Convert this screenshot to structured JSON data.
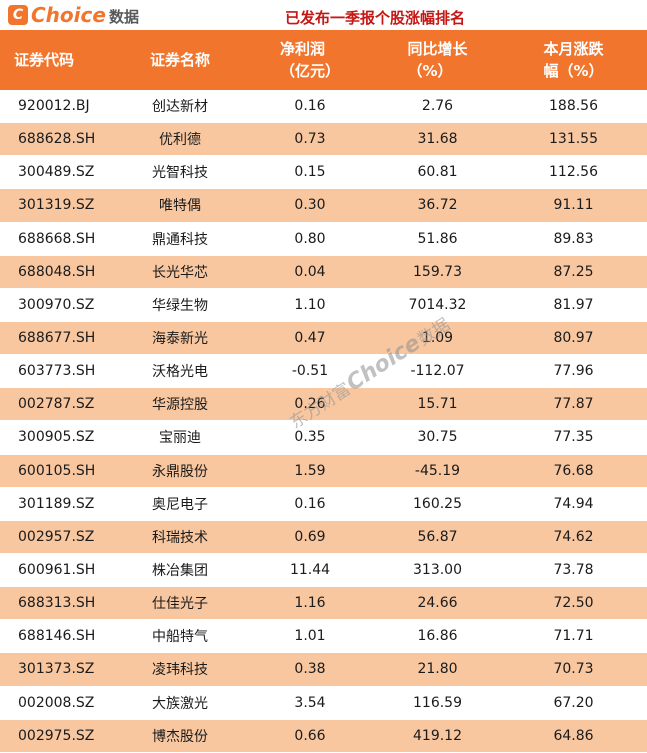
{
  "logo": {
    "icon_glyph": "C",
    "brand": "Choice",
    "suffix": "数据"
  },
  "title": "已发布一季报个股涨幅排名",
  "watermark": {
    "part1": "东方财富",
    "part2": "Choice",
    "part3": "数据"
  },
  "colors": {
    "header_bg": "#F1752C",
    "row_alt_bg": "#F8C7A0",
    "title_red": "#C51714",
    "brand_orange": "#F1752C",
    "logo_suffix_gray": "#58595B"
  },
  "chart_data": {
    "type": "table",
    "title": "已发布一季报个股涨幅排名",
    "columns": [
      {
        "line1": "证券代码",
        "line2": ""
      },
      {
        "line1": "证券名称",
        "line2": ""
      },
      {
        "line1": "净利润",
        "line2": "（亿元）"
      },
      {
        "line1": "同比增长",
        "line2": "（%）"
      },
      {
        "line1": "本月涨跌",
        "line2": "幅（%）"
      }
    ],
    "column_keys": [
      "code",
      "name",
      "net_profit_100m_yuan",
      "yoy_growth_pct",
      "month_change_pct"
    ],
    "rows": [
      [
        "920012.BJ",
        "创达新材",
        "0.16",
        "2.76",
        "188.56"
      ],
      [
        "688628.SH",
        "优利德",
        "0.73",
        "31.68",
        "131.55"
      ],
      [
        "300489.SZ",
        "光智科技",
        "0.15",
        "60.81",
        "112.56"
      ],
      [
        "301319.SZ",
        "唯特偶",
        "0.30",
        "36.72",
        "91.11"
      ],
      [
        "688668.SH",
        "鼎通科技",
        "0.80",
        "51.86",
        "89.83"
      ],
      [
        "688048.SH",
        "长光华芯",
        "0.04",
        "159.73",
        "87.25"
      ],
      [
        "300970.SZ",
        "华绿生物",
        "1.10",
        "7014.32",
        "81.97"
      ],
      [
        "688677.SH",
        "海泰新光",
        "0.47",
        "1.09",
        "80.97"
      ],
      [
        "603773.SH",
        "沃格光电",
        "-0.51",
        "-112.07",
        "77.96"
      ],
      [
        "002787.SZ",
        "华源控股",
        "0.26",
        "15.71",
        "77.87"
      ],
      [
        "300905.SZ",
        "宝丽迪",
        "0.35",
        "30.75",
        "77.35"
      ],
      [
        "600105.SH",
        "永鼎股份",
        "1.59",
        "-45.19",
        "76.68"
      ],
      [
        "301189.SZ",
        "奥尼电子",
        "0.16",
        "160.25",
        "74.94"
      ],
      [
        "002957.SZ",
        "科瑞技术",
        "0.69",
        "56.87",
        "74.62"
      ],
      [
        "600961.SH",
        "株冶集团",
        "11.44",
        "313.00",
        "73.78"
      ],
      [
        "688313.SH",
        "仕佳光子",
        "1.16",
        "24.66",
        "72.50"
      ],
      [
        "688146.SH",
        "中船特气",
        "1.01",
        "16.86",
        "71.71"
      ],
      [
        "301373.SZ",
        "凌玮科技",
        "0.38",
        "21.80",
        "70.73"
      ],
      [
        "002008.SZ",
        "大族激光",
        "3.54",
        "116.59",
        "67.20"
      ],
      [
        "002975.SZ",
        "博杰股份",
        "0.66",
        "419.12",
        "64.86"
      ]
    ]
  }
}
